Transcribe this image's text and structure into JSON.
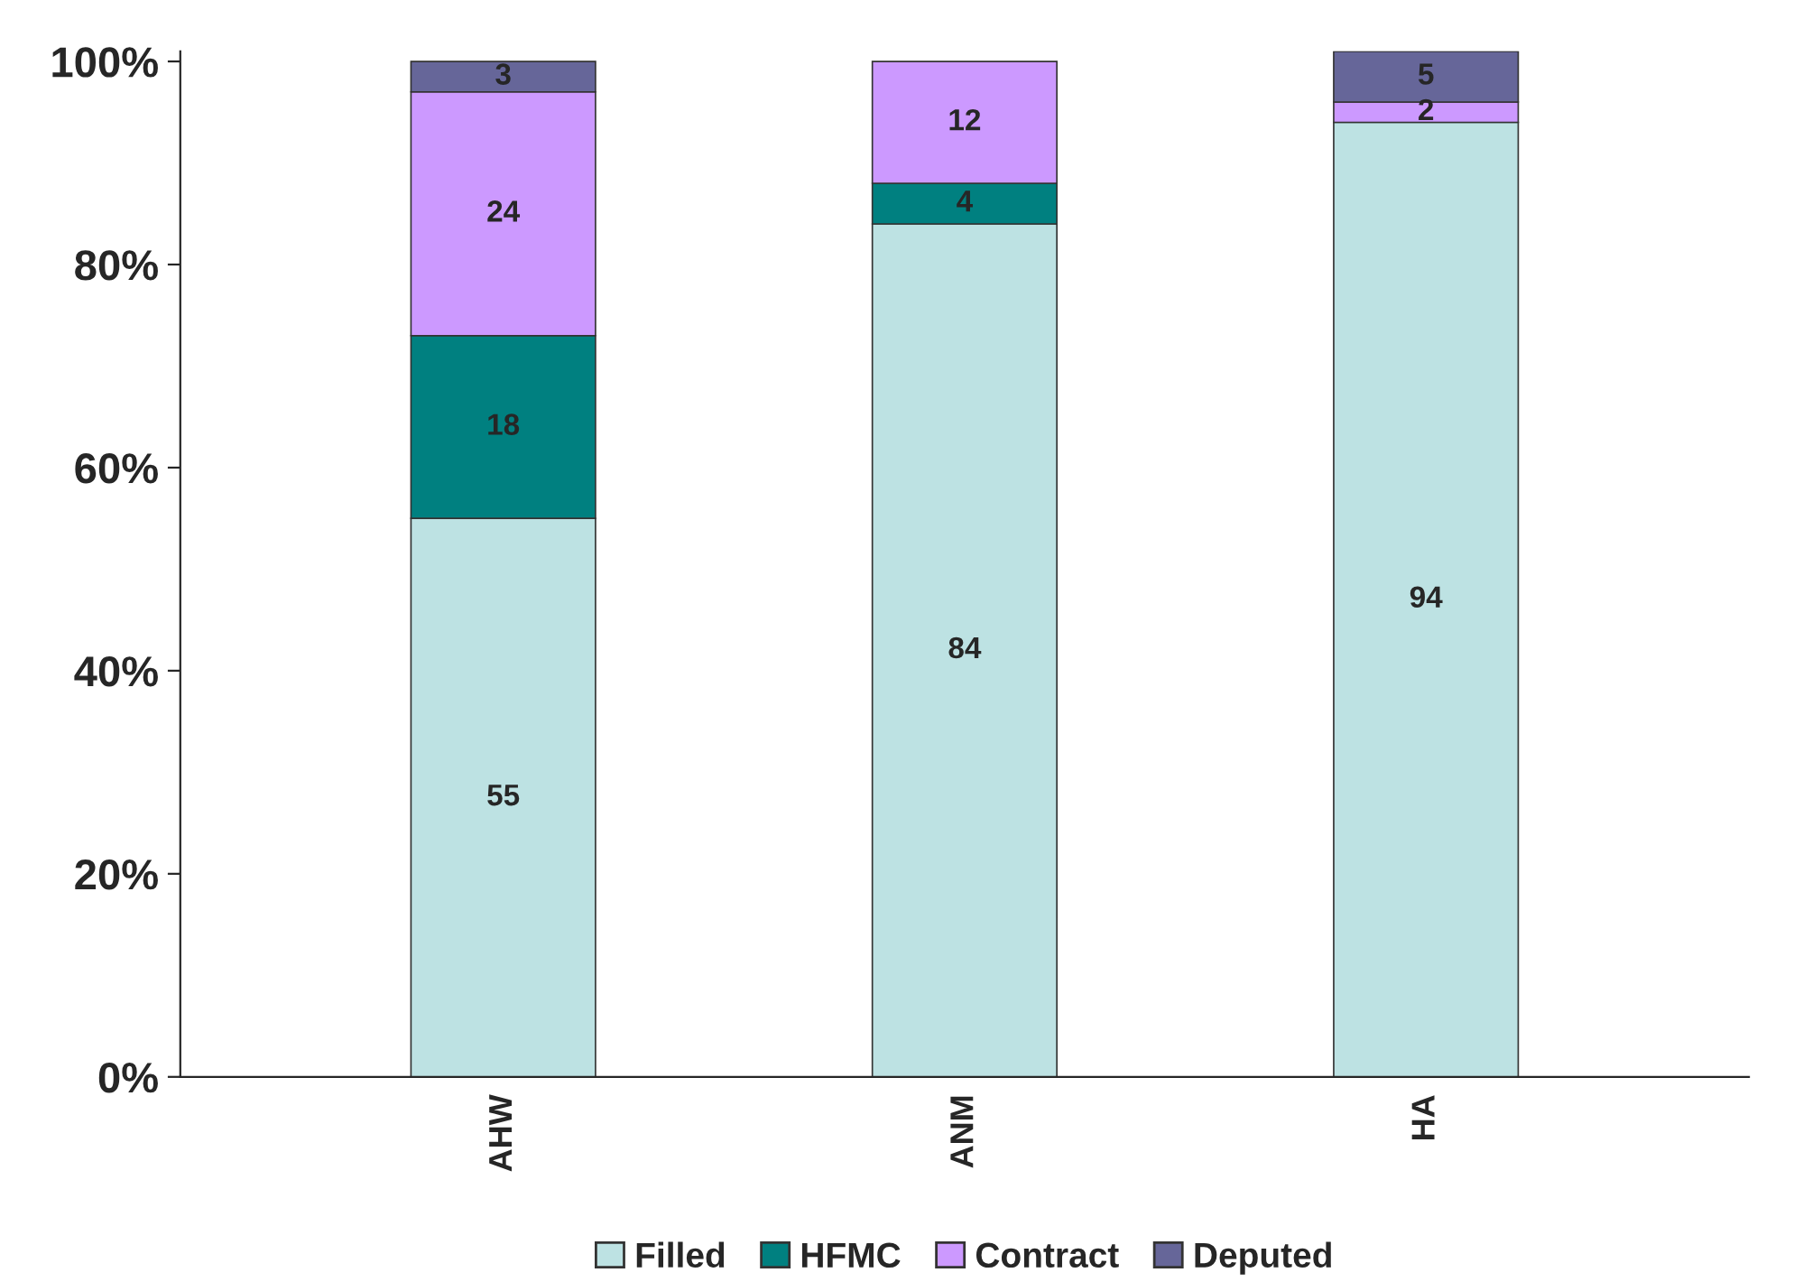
{
  "chart_data": {
    "type": "bar",
    "stacked": true,
    "categories": [
      "AHW",
      "ANM",
      "HA"
    ],
    "series": [
      {
        "name": "Filled",
        "color": "#bde2e3",
        "values": [
          55,
          84,
          94
        ]
      },
      {
        "name": "HFMC",
        "color": "#008080",
        "values": [
          18,
          4,
          null
        ]
      },
      {
        "name": "Contract",
        "color": "#cc99ff",
        "values": [
          24,
          12,
          2
        ]
      },
      {
        "name": "Deputed",
        "color": "#666699",
        "values": [
          3,
          null,
          5
        ]
      }
    ],
    "ylim": [
      0,
      101
    ],
    "yticks": [
      {
        "value": 0,
        "label": "0%"
      },
      {
        "value": 20,
        "label": "20%"
      },
      {
        "value": 40,
        "label": "40%"
      },
      {
        "value": 60,
        "label": "60%"
      },
      {
        "value": 80,
        "label": "80%"
      },
      {
        "value": 100,
        "label": "100%"
      }
    ],
    "data_labels": true,
    "legend": "bottom",
    "grid": false
  }
}
